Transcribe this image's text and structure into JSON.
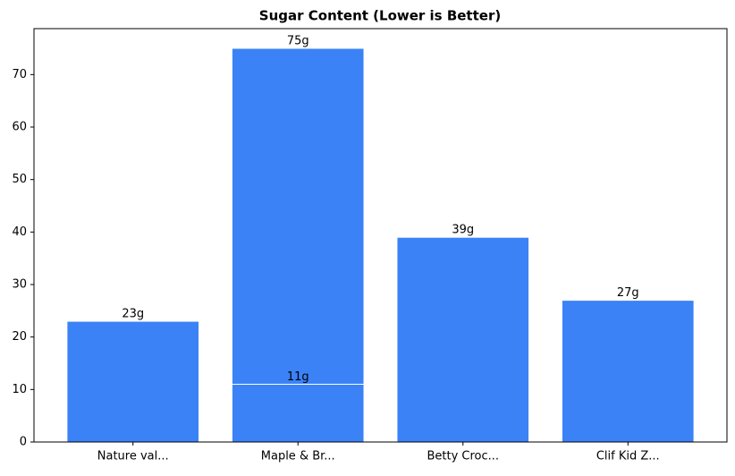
{
  "chart_data": {
    "type": "bar",
    "title": "Sugar Content (Lower is Better)",
    "categories": [
      "Nature val...",
      "Maple & Br...",
      "Maple & Br...",
      "Betty Croc...",
      "Clif Kid Z..."
    ],
    "values": [
      23,
      75,
      11,
      39,
      27
    ],
    "value_labels": [
      "23g",
      "75g",
      "11g",
      "39g",
      "27g"
    ],
    "color": "#3b82f6",
    "ylim": [
      0,
      78.75
    ],
    "yticks": [
      0,
      10,
      20,
      30,
      40,
      50,
      60,
      70
    ]
  }
}
